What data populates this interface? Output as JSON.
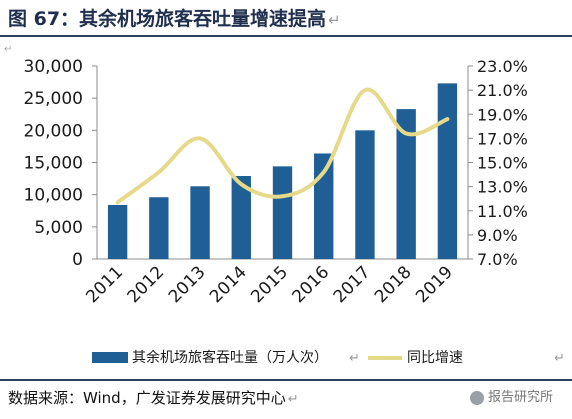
{
  "header": {
    "title": "图 67：其余机场旅客吞吐量增速提高",
    "return_mark": "↵"
  },
  "footer": {
    "source": "数据来源：Wind，广发证券发展研究中心",
    "return_mark": "↵",
    "watermark": "报告研究所"
  },
  "colors": {
    "bar": "#1f5f95",
    "line": "#e6d98a",
    "rule": "#2c3e5c",
    "axis": "#8c8c8c"
  },
  "chart_data": {
    "type": "bar",
    "categories": [
      "2011",
      "2012",
      "2013",
      "2014",
      "2015",
      "2016",
      "2017",
      "2018",
      "2019"
    ],
    "series": [
      {
        "name": "其余机场旅客吞吐量（万人次）",
        "type": "bar",
        "axis": "left",
        "values": [
          8400,
          9600,
          11300,
          12900,
          14400,
          16400,
          20000,
          23300,
          27300
        ]
      },
      {
        "name": "同比增速",
        "type": "line",
        "axis": "right",
        "values": [
          11.7,
          14.2,
          17.0,
          13.2,
          12.2,
          14.2,
          21.0,
          17.4,
          18.6
        ]
      }
    ],
    "y_left": {
      "range": [
        0,
        30000
      ],
      "ticks": [
        "0",
        "5,000",
        "10,000",
        "15,000",
        "20,000",
        "25,000",
        "30,000"
      ]
    },
    "y_right": {
      "range": [
        7.0,
        23.0
      ],
      "ticks": [
        "7.0%",
        "9.0%",
        "11.0%",
        "13.0%",
        "15.0%",
        "17.0%",
        "19.0%",
        "21.0%",
        "23.0%"
      ]
    },
    "legend": {
      "position": "bottom",
      "return_mark": "↵"
    },
    "grid": false
  }
}
